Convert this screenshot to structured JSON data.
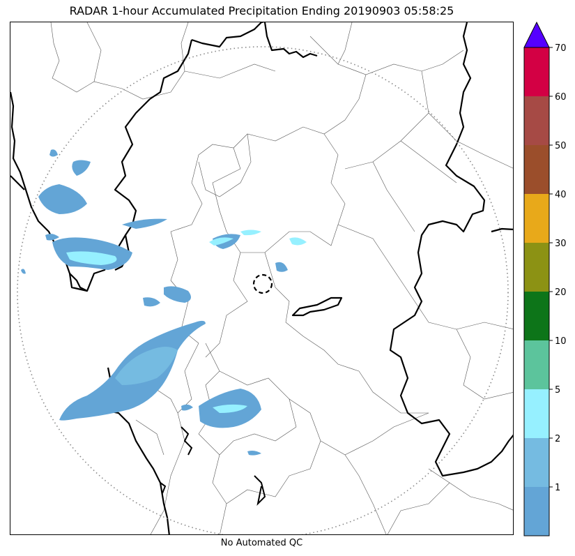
{
  "title": "RADAR 1-hour Accumulated Precipitation Ending 20190903 05:58:25",
  "footer": "No Automated QC",
  "colorbar": {
    "extend": "max",
    "overflow_color": "#5500ff",
    "bins": [
      {
        "color": "#63a5d6"
      },
      {
        "color": "#75bbe1"
      },
      {
        "color": "#96f0ff"
      },
      {
        "color": "#5cc49c"
      },
      {
        "color": "#0d7519"
      },
      {
        "color": "#8c9214"
      },
      {
        "color": "#e8a91a"
      },
      {
        "color": "#9b4e2b"
      },
      {
        "color": "#a64a45"
      },
      {
        "color": "#d30044"
      }
    ],
    "ticks": [
      "1",
      "2",
      "5",
      "10",
      "20",
      "30",
      "40",
      "50",
      "60",
      "70"
    ]
  },
  "legend_colors": {
    "light_rain": "#63a5d6",
    "moderate_rain": "#75bbe1",
    "heavy_rain": "#96f0ff",
    "heavier_rain": "#5cc49c"
  }
}
